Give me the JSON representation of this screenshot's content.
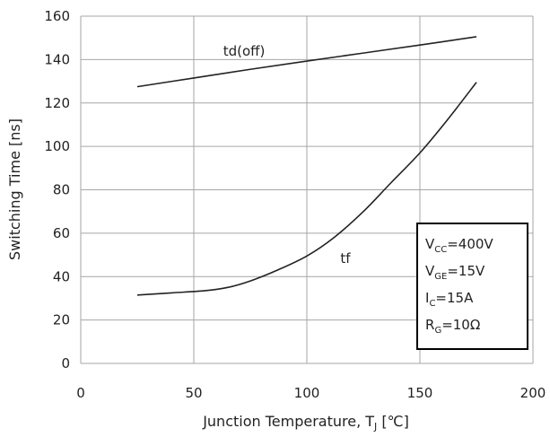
{
  "chart_data": {
    "type": "line",
    "xlabel": {
      "main": "Junction Temperature, T",
      "sub": "J",
      "unit": " [℃]"
    },
    "ylabel": "Switching Time [ns]",
    "xlim": [
      0,
      200
    ],
    "ylim": [
      0,
      160
    ],
    "x_ticks": [
      0,
      50,
      100,
      150,
      200
    ],
    "y_ticks": [
      0,
      20,
      40,
      60,
      80,
      100,
      120,
      140,
      160
    ],
    "grid": true,
    "series": [
      {
        "name": "td(off)",
        "x": [
          25,
          50,
          75,
          100,
          125,
          150,
          175
        ],
        "y": [
          127.5,
          131.5,
          135.5,
          139.3,
          143.0,
          146.7,
          150.5
        ],
        "color": "#222222"
      },
      {
        "name": "tf",
        "x": [
          25,
          40,
          55,
          65,
          75,
          87,
          100,
          112,
          125,
          137,
          150,
          162,
          175
        ],
        "y": [
          31.5,
          32.5,
          33.5,
          35.0,
          38.0,
          43.0,
          49.5,
          58.0,
          70.0,
          83.0,
          97.0,
          112.0,
          129.5
        ],
        "color": "#222222"
      }
    ],
    "annotation": [
      {
        "main": "V",
        "sub": "CC",
        "rest": "=400V"
      },
      {
        "main": "V",
        "sub": "GE",
        "rest": "=15V"
      },
      {
        "main": "I",
        "sub": "C",
        "rest": "=15A"
      },
      {
        "main": "R",
        "sub": "G",
        "rest": "=10Ω"
      }
    ]
  }
}
